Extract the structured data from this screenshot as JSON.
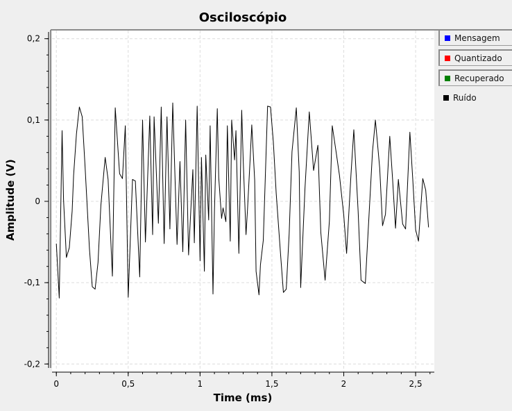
{
  "chart_data": {
    "type": "line",
    "title": "Osciloscópio",
    "xlabel": "Time (ms)",
    "ylabel": "Amplitude (V)",
    "xlim": [
      -0.03,
      2.63
    ],
    "ylim": [
      -0.21,
      0.21
    ],
    "x_ticks": [
      {
        "v": 0,
        "label": "0"
      },
      {
        "v": 0.5,
        "label": "0,5"
      },
      {
        "v": 1,
        "label": "1"
      },
      {
        "v": 1.5,
        "label": "1,5"
      },
      {
        "v": 2,
        "label": "2"
      },
      {
        "v": 2.5,
        "label": "2,5"
      }
    ],
    "y_ticks": [
      {
        "v": 0.2,
        "label": "0,2"
      },
      {
        "v": 0.1,
        "label": "0,1"
      },
      {
        "v": 0,
        "label": "0"
      },
      {
        "v": -0.1,
        "label": "-0,1"
      },
      {
        "v": -0.2,
        "label": "-0,2"
      }
    ],
    "grid": true,
    "legend_position": "right",
    "series": [
      {
        "name": "Mensagem",
        "color": "#0000ff",
        "values": []
      },
      {
        "name": "Quantizado",
        "color": "#ff0000",
        "values": []
      },
      {
        "name": "Recuperado",
        "color": "#008000",
        "values": []
      },
      {
        "name": "Ruído",
        "color": "#000000",
        "x": [
          0,
          0.02,
          0.04,
          0.05,
          0.07,
          0.09,
          0.11,
          0.12,
          0.14,
          0.16,
          0.18,
          0.2,
          0.23,
          0.25,
          0.27,
          0.29,
          0.31,
          0.34,
          0.36,
          0.39,
          0.41,
          0.44,
          0.46,
          0.48,
          0.5,
          0.53,
          0.55,
          0.58,
          0.6,
          0.62,
          0.65,
          0.67,
          0.68,
          0.71,
          0.73,
          0.75,
          0.77,
          0.79,
          0.81,
          0.84,
          0.86,
          0.88,
          0.9,
          0.92,
          0.95,
          0.96,
          0.98,
          1.0,
          1.01,
          1.03,
          1.04,
          1.06,
          1.07,
          1.09,
          1.1,
          1.12,
          1.13,
          1.15,
          1.16,
          1.18,
          1.19,
          1.21,
          1.22,
          1.24,
          1.25,
          1.27,
          1.29,
          1.3,
          1.32,
          1.33,
          1.35,
          1.36,
          1.38,
          1.39,
          1.41,
          1.42,
          1.44,
          1.47,
          1.49,
          1.51,
          1.53,
          1.56,
          1.58,
          1.6,
          1.62,
          1.64,
          1.67,
          1.69,
          1.7,
          1.73,
          1.76,
          1.79,
          1.82,
          1.84,
          1.87,
          1.9,
          1.92,
          1.95,
          1.97,
          2.0,
          2.02,
          2.05,
          2.07,
          2.1,
          2.12,
          2.15,
          2.17,
          2.2,
          2.22,
          2.25,
          2.27,
          2.29,
          2.32,
          2.34,
          2.36,
          2.38,
          2.41,
          2.43,
          2.46,
          2.48,
          2.5,
          2.52,
          2.55,
          2.57,
          2.59
        ],
        "y": [
          -0.052,
          -0.119,
          0.087,
          0.002,
          -0.069,
          -0.057,
          -0.012,
          0.032,
          0.083,
          0.116,
          0.104,
          0.043,
          -0.058,
          -0.105,
          -0.108,
          -0.075,
          -0.005,
          0.054,
          0.027,
          -0.092,
          0.115,
          0.034,
          0.028,
          0.093,
          -0.118,
          0.027,
          0.025,
          -0.093,
          0.1,
          -0.05,
          0.105,
          -0.041,
          0.104,
          -0.027,
          0.116,
          -0.052,
          0.104,
          -0.034,
          0.121,
          -0.053,
          0.049,
          -0.062,
          0.1,
          -0.066,
          0.039,
          -0.051,
          0.117,
          -0.073,
          0.054,
          -0.086,
          0.057,
          -0.023,
          0.093,
          -0.114,
          -0.012,
          0.114,
          0.029,
          -0.021,
          -0.008,
          -0.025,
          0.093,
          -0.049,
          0.1,
          0.051,
          0.087,
          -0.064,
          0.112,
          0.052,
          -0.041,
          -0.011,
          0.058,
          0.094,
          0.026,
          -0.086,
          -0.115,
          -0.078,
          -0.048,
          0.117,
          0.116,
          0.073,
          0.01,
          -0.065,
          -0.112,
          -0.108,
          -0.04,
          0.061,
          0.115,
          0.036,
          -0.106,
          0.016,
          0.11,
          0.038,
          0.069,
          -0.038,
          -0.097,
          -0.024,
          0.093,
          0.057,
          0.032,
          -0.017,
          -0.064,
          0.033,
          0.088,
          -0.012,
          -0.097,
          -0.101,
          -0.036,
          0.061,
          0.1,
          0.041,
          -0.03,
          -0.016,
          0.08,
          0.027,
          -0.033,
          0.027,
          -0.028,
          -0.034,
          0.085,
          0.028,
          -0.035,
          -0.049,
          0.028,
          0.014,
          -0.032
        ]
      }
    ]
  }
}
